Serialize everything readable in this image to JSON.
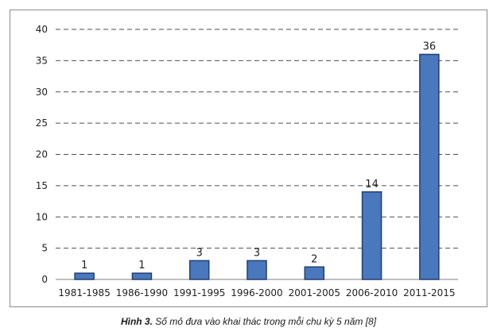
{
  "chart_data": {
    "type": "bar",
    "categories": [
      "1981-1985",
      "1986-1990",
      "1991-1995",
      "1996-2000",
      "2001-2005",
      "2006-2010",
      "2011-2015"
    ],
    "values": [
      1,
      1,
      3,
      3,
      2,
      14,
      36
    ],
    "data_labels": [
      "1",
      "1",
      "3",
      "3",
      "2",
      "14",
      "36"
    ],
    "ylim": [
      0,
      40
    ],
    "yticks": [
      0,
      5,
      10,
      15,
      20,
      25,
      30,
      35,
      40
    ],
    "grid": "horizontal dashed",
    "bar_color": "#4a78bd",
    "bar_edge_color": "#1f3f73"
  },
  "caption": {
    "label": "Hình 3.",
    "text": "Số mỏ đưa vào khai thác trong mỗi chu kỳ 5 năm [8]"
  }
}
